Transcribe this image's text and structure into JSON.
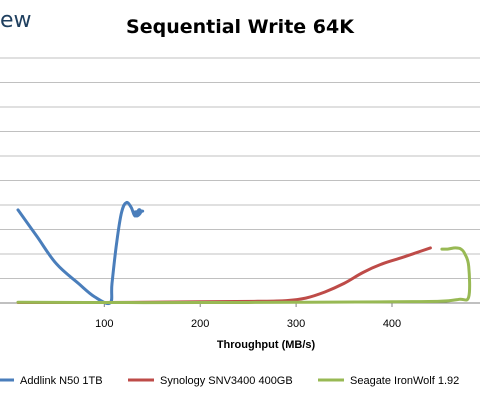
{
  "brand_fragment": "ew",
  "chart_data": {
    "type": "line",
    "title": "Sequential Write 64K",
    "xlabel": "Throughput (MB/s)",
    "ylabel": "",
    "x_ticks": [
      100,
      200,
      300,
      400
    ],
    "xlim": [
      10,
      480
    ],
    "ylim": [
      0,
      10
    ],
    "grid": true,
    "legend": "bottom",
    "series": [
      {
        "name": "Addlink N50 1TB",
        "color": "#4a7ebb",
        "points": [
          [
            10,
            3.8
          ],
          [
            30,
            2.7
          ],
          [
            50,
            1.6
          ],
          [
            73,
            0.8
          ],
          [
            90,
            0.25
          ],
          [
            106,
            0
          ],
          [
            108,
            0.8
          ],
          [
            113,
            2.5
          ],
          [
            118,
            3.7
          ],
          [
            123,
            4.1
          ],
          [
            128,
            3.9
          ],
          [
            132,
            3.55
          ],
          [
            136,
            3.8
          ],
          [
            138,
            3.7
          ],
          [
            134,
            3.55
          ],
          [
            131,
            3.7
          ],
          [
            140,
            3.75
          ]
        ]
      },
      {
        "name": "Synology SNV3400 400GB",
        "color": "#be4b48",
        "points": [
          [
            10,
            0.02
          ],
          [
            100,
            0.02
          ],
          [
            200,
            0.05
          ],
          [
            260,
            0.07
          ],
          [
            290,
            0.1
          ],
          [
            310,
            0.2
          ],
          [
            330,
            0.45
          ],
          [
            350,
            0.8
          ],
          [
            370,
            1.25
          ],
          [
            390,
            1.6
          ],
          [
            410,
            1.85
          ],
          [
            425,
            2.05
          ],
          [
            440,
            2.25
          ]
        ]
      },
      {
        "name": "Seagate IronWolf 1.92",
        "color": "#98b954",
        "points": [
          [
            10,
            0.03
          ],
          [
            100,
            0.02
          ],
          [
            200,
            0.02
          ],
          [
            300,
            0.03
          ],
          [
            400,
            0.05
          ],
          [
            450,
            0.07
          ],
          [
            470,
            0.15
          ],
          [
            480,
            0.25
          ],
          [
            480,
            1.5
          ],
          [
            476,
            2.0
          ],
          [
            472,
            2.2
          ],
          [
            466,
            2.25
          ],
          [
            458,
            2.2
          ],
          [
            452,
            2.2
          ]
        ]
      }
    ]
  }
}
